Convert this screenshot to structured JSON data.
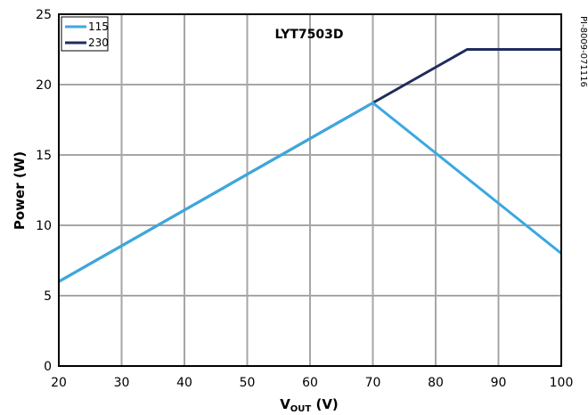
{
  "chart_data": {
    "type": "line",
    "title": "LYT7503D",
    "xlabel_main": "V",
    "xlabel_sub": "OUT",
    "xlabel_unit": " (V)",
    "ylabel": "Power (W)",
    "xlim": [
      20,
      100
    ],
    "ylim": [
      0,
      25
    ],
    "x_ticks": [
      "20",
      "30",
      "40",
      "50",
      "60",
      "70",
      "80",
      "90",
      "100"
    ],
    "y_ticks": [
      "0",
      "5",
      "10",
      "15",
      "20",
      "25"
    ],
    "grid": true,
    "legend_position": "top-left",
    "series": [
      {
        "name": "115",
        "color": "#3aa9e0",
        "x": [
          20,
          70,
          100
        ],
        "y": [
          6.0,
          18.7,
          8.0
        ]
      },
      {
        "name": "230",
        "color": "#1f2c5c",
        "x": [
          20,
          70,
          85,
          100
        ],
        "y": [
          6.0,
          18.7,
          22.5,
          22.5
        ]
      }
    ],
    "annotation": "PI-8009-071116"
  }
}
